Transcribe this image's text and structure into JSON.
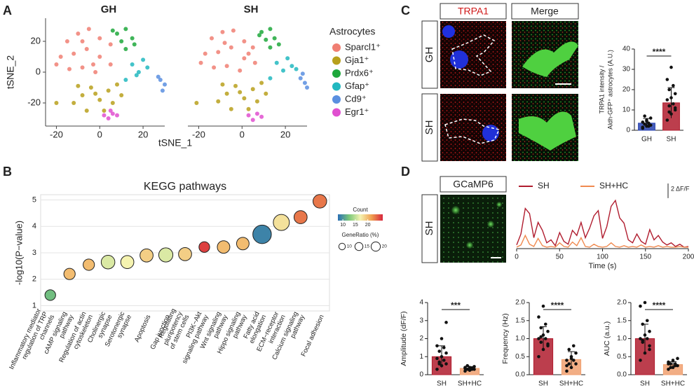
{
  "panel_labels": [
    "A",
    "B",
    "C",
    "D"
  ],
  "image_labels": {
    "C": {
      "columns": [
        "TRPA1",
        "Merge"
      ],
      "rows": [
        "GH",
        "SH"
      ]
    },
    "D": {
      "columns": [
        "GCaMP6"
      ],
      "rows": [
        "SH"
      ]
    }
  },
  "chart_data": [
    {
      "type": "scatter",
      "facets": [
        "GH",
        "SH"
      ],
      "xlabel": "tSNE_1",
      "ylabel": "tSNE_2",
      "legend_title": "Astrocytes",
      "xlim": [
        -25,
        30
      ],
      "ylim": [
        -35,
        35
      ],
      "xticks": [
        -20,
        0,
        20
      ],
      "yticks": [
        -20,
        0,
        20
      ],
      "series": [
        {
          "name": "Sparcl1⁺",
          "color": "#f07f73",
          "facets": [
            {
              "x": [
                -15,
                -10,
                -5,
                0,
                5,
                -18,
                -12,
                -6,
                0,
                5,
                -14,
                -8,
                -2,
                -20,
                -8,
                -3
              ],
              "y": [
                20,
                25,
                28,
                22,
                18,
                10,
                12,
                15,
                10,
                5,
                2,
                3,
                0,
                5,
                20,
                5
              ]
            },
            {
              "x": [
                -14,
                -9,
                -4,
                1,
                5,
                -17,
                -11,
                -5,
                1,
                6,
                -13,
                -7,
                -1,
                -19,
                -8,
                3
              ],
              "y": [
                22,
                26,
                27,
                20,
                16,
                12,
                13,
                16,
                9,
                6,
                3,
                4,
                1,
                6,
                19,
                12
              ]
            }
          ]
        },
        {
          "name": "Gja1⁺",
          "color": "#b8a01c",
          "facets": [
            {
              "x": [
                -12,
                -8,
                -4,
                0,
                4,
                8,
                10,
                -6,
                2,
                6,
                -20,
                -10,
                -2
              ],
              "y": [
                -20,
                -15,
                -10,
                -18,
                -12,
                -8,
                -15,
                -25,
                -25,
                -20,
                -20,
                -9,
                -14
              ]
            },
            {
              "x": [
                -11,
                -7,
                -3,
                1,
                5,
                9,
                11,
                -5,
                3,
                7,
                -21,
                -9,
                -1
              ],
              "y": [
                -19,
                -14,
                -9,
                -17,
                -11,
                -7,
                -14,
                -24,
                -24,
                -19,
                -20,
                -8,
                -13
              ]
            }
          ]
        },
        {
          "name": "Prdx6⁺",
          "color": "#1ea83c",
          "facets": [
            {
              "x": [
                8,
                12,
                15,
                10,
                16,
                12,
                6
              ],
              "y": [
                25,
                28,
                22,
                20,
                18,
                15,
                27
              ]
            },
            {
              "x": [
                9,
                13,
                15,
                11,
                17,
                13,
                8
              ],
              "y": [
                26,
                28,
                22,
                21,
                18,
                16,
                24
              ]
            }
          ]
        },
        {
          "name": "Gfap⁺",
          "color": "#22b8c0",
          "facets": [
            {
              "x": [
                15,
                20,
                18,
                22,
                12,
                17
              ],
              "y": [
                5,
                8,
                0,
                3,
                -5,
                -2
              ]
            },
            {
              "x": [
                16,
                21,
                19,
                23,
                13,
                25
              ],
              "y": [
                6,
                9,
                1,
                4,
                -4,
                2
              ]
            }
          ]
        },
        {
          "name": "Cd9⁺",
          "color": "#5a8fe0",
          "facets": [
            {
              "x": [
                28,
                30,
                29,
                27
              ],
              "y": [
                -5,
                -8,
                -12,
                -3
              ]
            },
            {
              "x": [
                27,
                29,
                30,
                28
              ],
              "y": [
                -4,
                -7,
                -10,
                -1
              ]
            }
          ]
        },
        {
          "name": "Egr1⁺",
          "color": "#e050d0",
          "facets": [
            {
              "x": [
                2,
                6,
                4,
                8,
                5
              ],
              "y": [
                -28,
                -27,
                -30,
                -28,
                -25
              ]
            },
            {
              "x": [
                3,
                7,
                5,
                9
              ],
              "y": [
                -28,
                -27,
                -31,
                -29
              ]
            }
          ]
        }
      ]
    },
    {
      "type": "bubble",
      "title": "KEGG pathways",
      "ylabel": "-log10(P−value)",
      "categories": [
        [
          "Inflammatory mediator",
          "regulation of TRP",
          "channels"
        ],
        [
          "cAMP signaling",
          "pathway"
        ],
        [
          "Regulation of actin",
          "cytoskeleton"
        ],
        [
          "Cholinergic",
          "synapse"
        ],
        [
          "Serotonergic",
          "synapse"
        ],
        [
          "Apoptosis"
        ],
        [
          "Gap junction"
        ],
        [
          "Regulating",
          "pluripotency",
          "of stem cells"
        ],
        [
          "PI3K−Akt",
          "signaling pathway"
        ],
        [
          "Wnt signaling",
          "pathway"
        ],
        [
          "Hippo signaling",
          "pathway"
        ],
        [
          "Fatty acid",
          "elongation"
        ],
        [
          "ECM−receptor",
          "interaction"
        ],
        [
          "Calcium signaling",
          "pathway"
        ],
        [
          "Focal adhesion"
        ]
      ],
      "values": [
        1.4,
        2.2,
        2.55,
        2.65,
        2.65,
        2.9,
        2.92,
        2.95,
        3.22,
        3.22,
        3.35,
        3.7,
        4.15,
        4.35,
        4.95
      ],
      "counts": [
        12,
        20,
        20,
        16,
        17,
        19,
        16,
        19,
        25,
        20,
        20,
        9,
        18,
        23,
        23
      ],
      "sizes": [
        8,
        9,
        9,
        13,
        12,
        12,
        14,
        12,
        8,
        11,
        11,
        24,
        18,
        12,
        13
      ],
      "ylim": [
        0.8,
        5.2
      ],
      "yticks": [
        1,
        2,
        3,
        4,
        5
      ],
      "color_legend_title": "Count",
      "clim": [
        8,
        26
      ],
      "cticks": [
        10,
        15,
        20
      ],
      "colorscale": [
        "#2b6fb5",
        "#7ac879",
        "#f5f3b0",
        "#f0a050",
        "#d7263d"
      ],
      "size_legend_title": "GeneRatio (%)",
      "size_ticks": [
        10,
        15,
        20
      ]
    },
    {
      "type": "bar",
      "ylabel": [
        "TRPA1 intensity /",
        "Aldh-GFP⁺ astrocytes (A.U.)"
      ],
      "categories": [
        "GH",
        "SH"
      ],
      "values": [
        3.5,
        13.5
      ],
      "errors": [
        2.3,
        7.5
      ],
      "colors": [
        "#2742b0",
        "#b01c2e"
      ],
      "points": [
        [
          1,
          2,
          2.5,
          3,
          3.5,
          4,
          5,
          6,
          7,
          2,
          1.5,
          4.5
        ],
        [
          5,
          8,
          10,
          12,
          13,
          15,
          16,
          18,
          20,
          22,
          25,
          31,
          11,
          9
        ]
      ],
      "ylim": [
        0,
        40
      ],
      "yticks": [
        0,
        10,
        20,
        30,
        40
      ],
      "significance": "****"
    },
    {
      "type": "line",
      "xlabel": "Time (s)",
      "xlim": [
        0,
        200
      ],
      "xticks": [
        0,
        50,
        100,
        150,
        200
      ],
      "ylim": [
        0,
        7
      ],
      "scale_bar": {
        "value": 2,
        "label": "2 ΔF/F"
      },
      "x": [
        0,
        5,
        10,
        15,
        20,
        25,
        30,
        35,
        40,
        45,
        50,
        55,
        60,
        65,
        70,
        75,
        80,
        85,
        90,
        95,
        100,
        105,
        110,
        115,
        120,
        125,
        130,
        135,
        140,
        145,
        150,
        155,
        160,
        165,
        170,
        175,
        180,
        185,
        190,
        195,
        200
      ],
      "series": [
        {
          "name": "SH",
          "color": "#b01c2e",
          "values": [
            0.5,
            2,
            5.5,
            4.8,
            1.5,
            3.6,
            2.5,
            0.8,
            1.2,
            0.4,
            2.2,
            1.0,
            0.6,
            2.5,
            1.8,
            3.6,
            1.5,
            2.8,
            4.5,
            5.2,
            1.4,
            3.0,
            5.8,
            6.6,
            4.2,
            3.5,
            1.2,
            0.8,
            2.0,
            1.0,
            0.6,
            2.6,
            1.2,
            1.8,
            0.9,
            0.5,
            0.8,
            0.3,
            0.6,
            0.2,
            0.3
          ]
        },
        {
          "name": "SH+HC",
          "color": "#f08a50",
          "values": [
            0.2,
            0.5,
            1.8,
            0.6,
            0.3,
            1.4,
            0.4,
            0.2,
            0.3,
            0.2,
            0.8,
            0.3,
            0.2,
            0.9,
            0.4,
            1.5,
            0.3,
            0.2,
            0.6,
            0.3,
            0.2,
            0.3,
            0.8,
            0.3,
            0.2,
            0.4,
            0.2,
            0.3,
            0.2,
            0.5,
            0.2,
            0.3,
            0.2,
            0.4,
            0.2,
            0.3,
            0.2,
            0.2,
            0.3,
            0.2,
            0.2
          ]
        }
      ]
    },
    {
      "type": "bar",
      "ylabel": [
        "Amplitude (dF/F)"
      ],
      "categories": [
        "SH",
        "SH+HC"
      ],
      "values": [
        1.0,
        0.35
      ],
      "errors": [
        0.6,
        0.1
      ],
      "colors": [
        "#b01c2e",
        "#f0a070"
      ],
      "points": [
        [
          0.3,
          0.5,
          0.6,
          0.7,
          0.8,
          0.9,
          1.0,
          1.2,
          1.3,
          1.5,
          1.6,
          2.0,
          2.9,
          0.6
        ],
        [
          0.2,
          0.25,
          0.3,
          0.3,
          0.35,
          0.4,
          0.4,
          0.45,
          0.5,
          0.3,
          0.35,
          0.25
        ]
      ],
      "ylim": [
        0,
        4
      ],
      "yticks": [
        0,
        1,
        2,
        3,
        4
      ],
      "significance": "***"
    },
    {
      "type": "bar",
      "ylabel": [
        "Frequency (Hz)"
      ],
      "categories": [
        "SH",
        "SH+HC"
      ],
      "values": [
        1.0,
        0.42
      ],
      "errors": [
        0.33,
        0.22
      ],
      "colors": [
        "#b01c2e",
        "#f0a070"
      ],
      "points": [
        [
          0.5,
          0.7,
          0.8,
          0.9,
          1.0,
          1.0,
          1.1,
          1.2,
          1.3,
          1.4,
          1.6,
          1.9,
          0.85,
          1.05
        ],
        [
          0.1,
          0.2,
          0.3,
          0.3,
          0.4,
          0.4,
          0.5,
          0.6,
          0.7,
          0.8,
          0.25,
          0.45
        ]
      ],
      "ylim": [
        0,
        2
      ],
      "yticks": [
        {
          "value": 0,
          "label": "0.0"
        },
        0.5,
        {
          "value": 1,
          "label": "1.0"
        },
        1.5,
        {
          "value": 2,
          "label": "2.0"
        }
      ],
      "significance": "****"
    },
    {
      "type": "bar",
      "ylabel": [
        "AUC (a.u.)"
      ],
      "categories": [
        "SH",
        "SH+HC"
      ],
      "values": [
        1.0,
        0.28
      ],
      "errors": [
        0.4,
        0.08
      ],
      "colors": [
        "#b01c2e",
        "#f0a070"
      ],
      "points": [
        [
          0.4,
          0.6,
          0.7,
          0.9,
          1.0,
          1.0,
          1.1,
          1.2,
          1.4,
          1.5,
          1.9,
          2.0,
          0.8,
          0.95
        ],
        [
          0.15,
          0.2,
          0.25,
          0.3,
          0.3,
          0.35,
          0.4,
          0.45,
          0.2,
          0.25,
          0.3
        ]
      ],
      "ylim": [
        0,
        2
      ],
      "yticks": [
        {
          "value": 0,
          "label": "0.0"
        },
        0.5,
        {
          "value": 1,
          "label": "1.0"
        },
        1.5,
        {
          "value": 2,
          "label": "2.0"
        }
      ],
      "significance": "****"
    }
  ]
}
